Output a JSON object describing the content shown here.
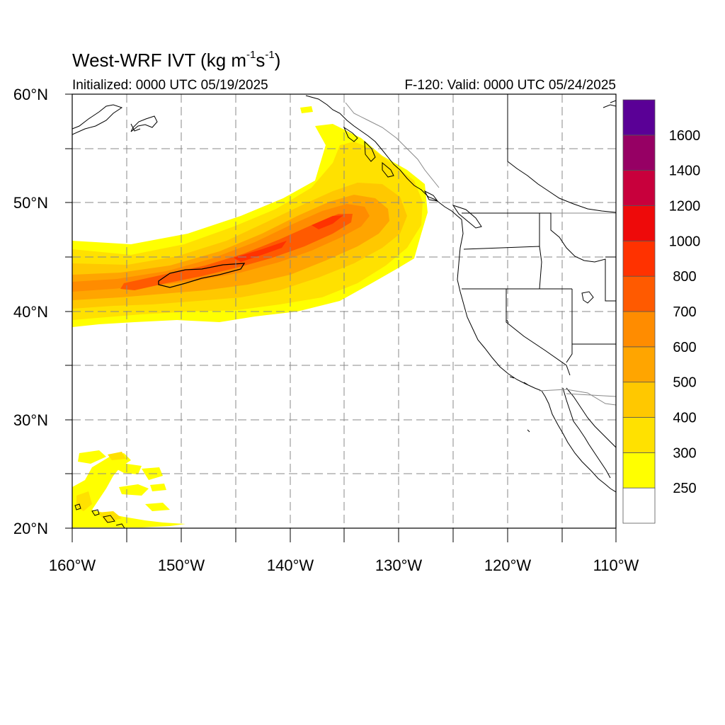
{
  "title": {
    "main": "West-WRF IVT (kg m",
    "exp1": "-1",
    "mid": "s",
    "exp2": "-1",
    "close": ")"
  },
  "subtitle": {
    "initialized": "Initialized: 0000 UTC 05/19/2025",
    "valid": "F-120: Valid: 0000 UTC 05/24/2025"
  },
  "map": {
    "projection": "cylindrical equidistant",
    "lon_range": [
      -160,
      -110
    ],
    "lat_range": [
      20,
      60
    ],
    "grid": "dashed, 5 degree spacing",
    "lat_labels": [
      "60°N",
      "50°N",
      "40°N",
      "30°N",
      "20°N"
    ],
    "lon_labels": [
      "160°W",
      "150°W",
      "140°W",
      "130°W",
      "120°W",
      "110°W"
    ]
  },
  "colorbar": {
    "levels": [
      {
        "color": "#ffffff",
        "label": ""
      },
      {
        "color": "#ffff00",
        "label": "250"
      },
      {
        "color": "#ffe100",
        "label": "300"
      },
      {
        "color": "#ffc800",
        "label": "400"
      },
      {
        "color": "#ffa500",
        "label": "500"
      },
      {
        "color": "#ff8c00",
        "label": "600"
      },
      {
        "color": "#ff5a00",
        "label": "700"
      },
      {
        "color": "#ff3200",
        "label": "800"
      },
      {
        "color": "#ee0a0a",
        "label": "1000"
      },
      {
        "color": "#c8003c",
        "label": "1200"
      },
      {
        "color": "#960064",
        "label": "1400"
      },
      {
        "color": "#5a0096",
        "label": "1600"
      }
    ]
  },
  "ivt_features": [
    {
      "name": "atmospheric-river",
      "lon_range": [
        -160,
        -127
      ],
      "lat_range": [
        38,
        57
      ],
      "max_level": "800"
    },
    {
      "name": "subtropical-moisture",
      "lon_range": [
        -160,
        -150
      ],
      "lat_range": [
        20,
        28
      ],
      "max_level": "300"
    }
  ]
}
